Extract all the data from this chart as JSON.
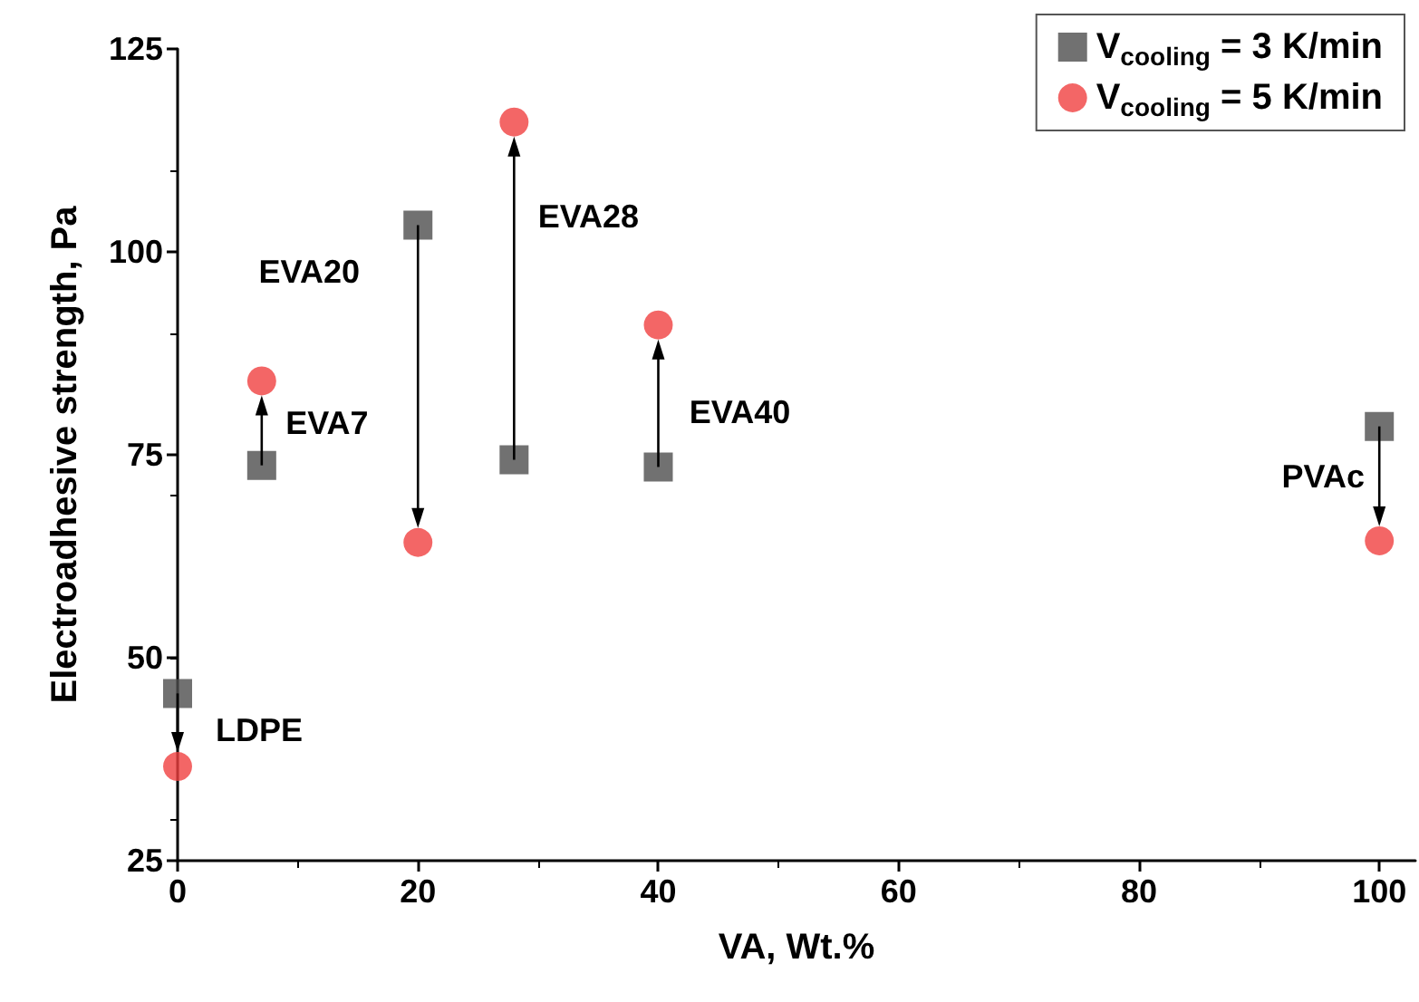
{
  "chart_data": {
    "type": "scatter",
    "xlabel": "VA, Wt.%",
    "ylabel": "Electroadhesive strength, Pa",
    "xlim": [
      0,
      103
    ],
    "xticks": [
      0,
      20,
      40,
      60,
      80,
      100
    ],
    "ylim": [
      25,
      125
    ],
    "yticks": [
      25,
      50,
      75,
      100,
      125
    ],
    "x": [
      0,
      7,
      20,
      28,
      40,
      100
    ],
    "series": [
      {
        "name": "V$_{cooling}$ = 3 K/min",
        "color": "#4d4d4d",
        "marker": "square",
        "values": [
          45.6,
          73.7,
          103.3,
          74.4,
          73.5,
          78.5
        ]
      },
      {
        "name": "V$_{cooling}$ = 5 K/min",
        "color": "#f04040",
        "marker": "circle",
        "values": [
          36.6,
          84.1,
          64.2,
          116,
          91,
          64.4
        ]
      }
    ],
    "annotations": [
      "LDPE",
      "EVA7",
      "EVA20",
      "EVA28",
      "EVA40",
      "PVAc"
    ],
    "grid": false,
    "legend": "top right"
  }
}
